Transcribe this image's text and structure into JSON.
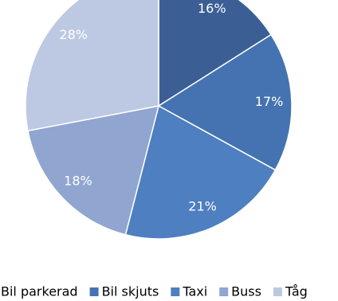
{
  "chart_data": {
    "type": "pie",
    "categories": [
      "Bil parkerad",
      "Bil skjuts",
      "Taxi",
      "Buss",
      "Tåg"
    ],
    "values": [
      16,
      17,
      21,
      18,
      28
    ],
    "value_labels": [
      "16%",
      "17%",
      "21%",
      "18%",
      "28%"
    ],
    "colors": [
      "#3b5f95",
      "#4573b1",
      "#4e7fc0",
      "#90a6d0",
      "#bdc9e2"
    ],
    "legend": "bottom"
  }
}
